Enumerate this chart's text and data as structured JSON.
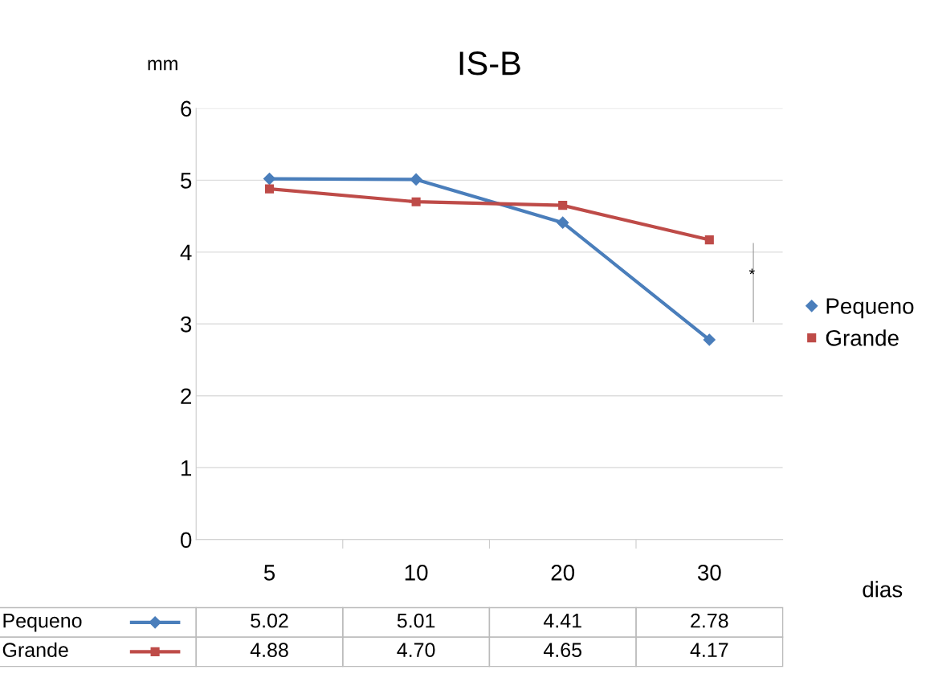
{
  "chart_data": {
    "type": "line",
    "title": "IS-B",
    "ylabel": "mm",
    "xlabel": "dias",
    "categories": [
      "5",
      "10",
      "20",
      "30"
    ],
    "series": [
      {
        "name": "Pequeno",
        "color": "#4a7ebb",
        "marker": "diamond",
        "values": [
          5.02,
          5.01,
          4.41,
          2.78
        ],
        "value_labels": [
          "5.02",
          "5.01",
          "4.41",
          "2.78"
        ]
      },
      {
        "name": "Grande",
        "color": "#be4b48",
        "marker": "square",
        "values": [
          4.88,
          4.7,
          4.65,
          4.17
        ],
        "value_labels": [
          "4.88",
          "4.70",
          "4.65",
          "4.17"
        ]
      }
    ],
    "ylim": [
      0,
      6
    ],
    "yticks": [
      0,
      1,
      2,
      3,
      4,
      5,
      6
    ],
    "grid": "y",
    "legend": "right",
    "annotations": [
      "*"
    ]
  }
}
